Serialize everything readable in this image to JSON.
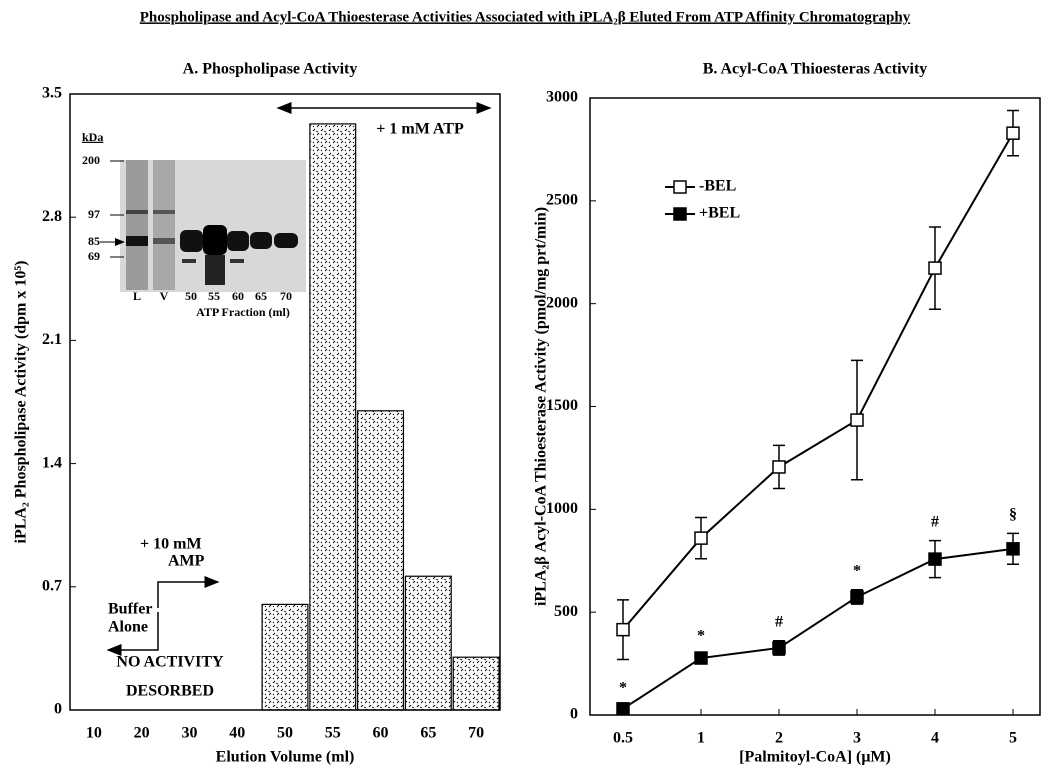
{
  "title": "Phospholipase and Acyl-CoA Thioesterase Activities Associated with iPLA₂β Eluted From ATP Affinity Chromatography",
  "chart_data": [
    {
      "type": "bar",
      "subtitle": "A.  Phospholipase Activity",
      "xlabel": "Elution Volume (ml)",
      "ylabel": "iPLA₂ Phospholipase Activity (dpm x 10⁵)",
      "categories": [
        "10",
        "20",
        "30",
        "40",
        "50",
        "55",
        "60",
        "65",
        "70"
      ],
      "values": [
        0,
        0,
        0,
        0,
        0.6,
        3.33,
        1.7,
        0.76,
        0.3
      ],
      "color": "#000000",
      "ylim": [
        0,
        3.5
      ],
      "yticks": [
        0,
        0.7,
        1.4,
        2.1,
        2.8,
        3.5
      ],
      "annotations": [
        "+ 1 mM ATP",
        "+ 10 mM",
        "AMP",
        "Buffer",
        "Alone",
        "NO ACTIVITY",
        "DESORBED"
      ],
      "inset": {
        "unit": "kDa",
        "markers": [
          "200",
          "97",
          "85",
          "69"
        ],
        "lanes": [
          "L",
          "V",
          "50",
          "55",
          "60",
          "65",
          "70"
        ],
        "xlabel": "ATP Fraction (ml)"
      }
    },
    {
      "type": "line",
      "subtitle": "B.  Acyl-CoA Thioesteras Activity",
      "xlabel": "[Palmitoyl-CoA] (μM)",
      "ylabel": "iPLA₂β Acyl-CoA Thioesterase Activity (pmol/mg prt/min)",
      "categories": [
        "0.5",
        "1",
        "2",
        "3",
        "4",
        "5"
      ],
      "series": [
        {
          "name": "-BEL",
          "color": "#000000",
          "marker": "open",
          "values": [
            415,
            860,
            1206,
            1434,
            2173,
            2829
          ],
          "errors": [
            145,
            100,
            105,
            290,
            200,
            110
          ]
        },
        {
          "name": "+BEL",
          "color": "#000000",
          "marker": "filled",
          "values": [
            30,
            277,
            326,
            574,
            758,
            808
          ],
          "errors": [
            10,
            15,
            35,
            35,
            90,
            75
          ],
          "annotations": [
            "*",
            "*",
            "#",
            "*",
            "#",
            "§"
          ]
        }
      ],
      "ylim": [
        0,
        3000
      ],
      "yticks": [
        0,
        500,
        1000,
        1500,
        2000,
        2500,
        3000
      ],
      "legend": "upper-left"
    }
  ]
}
